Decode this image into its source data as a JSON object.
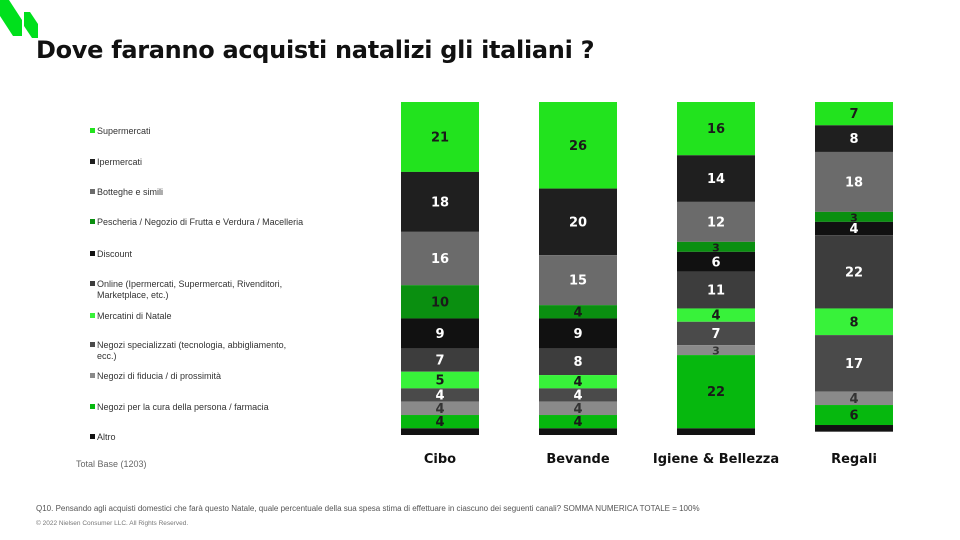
{
  "title": "Dove faranno acquisti natalizi gli italiani ?",
  "base_note": "Total Base  (1203)",
  "footnote": "Q10. Pensando agli acquisti domestici che farà questo Natale, quale percentuale della sua spesa stima di effettuare in ciascuno dei seguenti canali? SOMMA NUMERICA TOTALE = 100%",
  "copyright": "© 2022 Nielsen Consumer LLC. All Rights Reserved.",
  "colors": {
    "brand_green": "#00e01c"
  },
  "chart_data": {
    "type": "bar",
    "stacked": true,
    "categories": [
      "Cibo",
      "Bevande",
      "Igiene & Bellezza",
      "Regali"
    ],
    "ylim": [
      0,
      100
    ],
    "series": [
      {
        "name": "Supermercati",
        "color": "#22e31e",
        "text_color": "#1a1a1a",
        "values": [
          21,
          26,
          16,
          7
        ]
      },
      {
        "name": "Ipermercati",
        "color": "#1f1f1f",
        "text_color": "#ffffff",
        "values": [
          18,
          20,
          14,
          8
        ]
      },
      {
        "name": "Botteghe e simili",
        "color": "#6b6b6b",
        "text_color": "#ffffff",
        "values": [
          16,
          15,
          12,
          18
        ]
      },
      {
        "name": "Pescheria / Negozio di Frutta e Verdura / Macelleria",
        "color": "#0a8f10",
        "text_color": "#1a1a1a",
        "values": [
          10,
          4,
          3,
          3
        ]
      },
      {
        "name": "Discount",
        "color": "#111111",
        "text_color": "#ffffff",
        "values": [
          9,
          9,
          6,
          4
        ]
      },
      {
        "name": "Online (Ipermercati, Supermercati, Rivenditori, Marketplace, etc.)",
        "color": "#3d3d3d",
        "text_color": "#ffffff",
        "values": [
          7,
          8,
          11,
          22
        ]
      },
      {
        "name": "Mercatini di Natale",
        "color": "#38f23a",
        "text_color": "#1a1a1a",
        "values": [
          5,
          4,
          4,
          8
        ]
      },
      {
        "name": "Negozi specializzati (tecnologia, abbigliamento, ecc.)",
        "color": "#4a4a4a",
        "text_color": "#ffffff",
        "values": [
          4,
          4,
          7,
          17
        ]
      },
      {
        "name": "Negozi di fiducia / di prossimità",
        "color": "#8a8a8a",
        "text_color": "#333333",
        "values": [
          4,
          4,
          3,
          4
        ]
      },
      {
        "name": "Negozi per la cura della persona / farmacia",
        "color": "#06b80e",
        "text_color": "#1a1a1a",
        "values": [
          4,
          4,
          22,
          6
        ]
      },
      {
        "name": "Altro",
        "color": "#121212",
        "text_color": "#ffffff",
        "values": [
          2,
          2,
          2,
          2
        ]
      }
    ],
    "data_labels": [
      [
        "21",
        "18",
        "16",
        "10",
        "9",
        "7",
        "5",
        "4",
        "4",
        "4",
        ""
      ],
      [
        "26",
        "20",
        "15",
        "4",
        "9",
        "8",
        "4",
        "4",
        "4",
        "4",
        ""
      ],
      [
        "16",
        "14",
        "12",
        "3",
        "6",
        "11",
        "4",
        "7",
        "3",
        "22",
        ""
      ],
      [
        "7",
        "8",
        "18",
        "3",
        "4",
        "22",
        "8",
        "17",
        "4",
        "6",
        ""
      ]
    ]
  }
}
